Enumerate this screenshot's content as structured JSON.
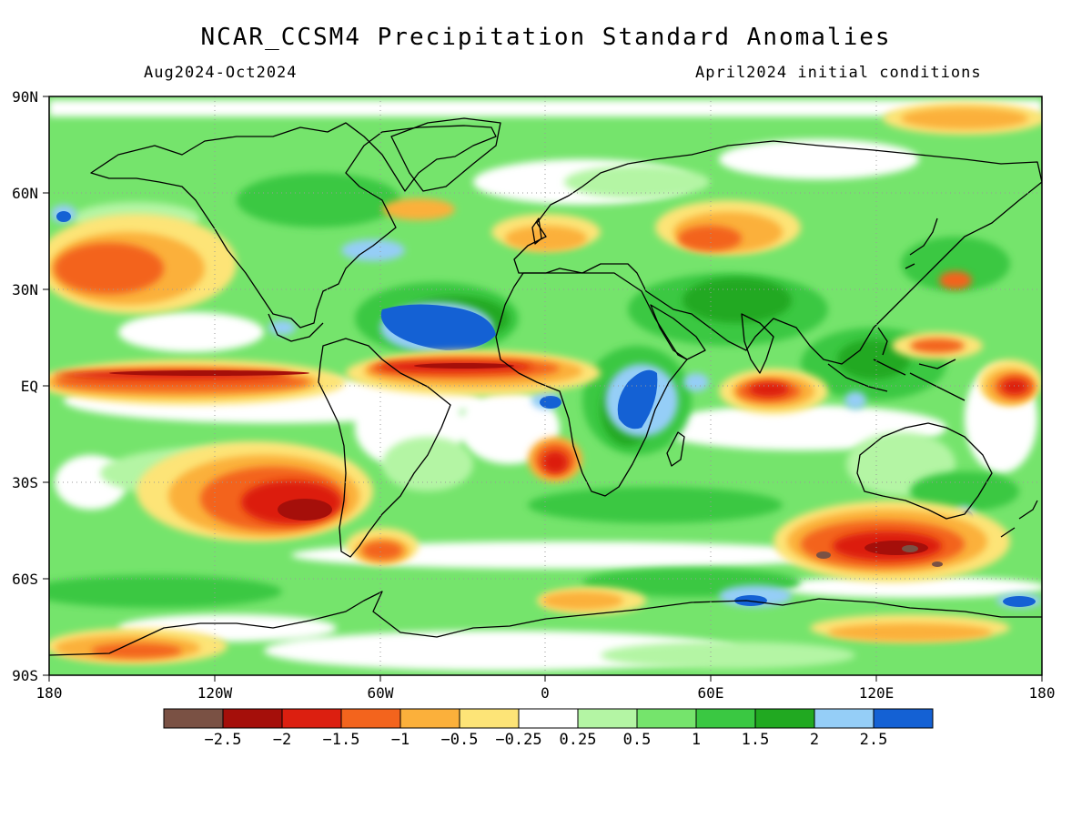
{
  "header": {
    "title": "NCAR_CCSM4 Precipitation Standard Anomalies",
    "period": "Aug2024-Oct2024",
    "init": "April2024 initial conditions"
  },
  "axes": {
    "lat_labels": [
      "90N",
      "60N",
      "30N",
      "EQ",
      "30S",
      "60S",
      "90S"
    ],
    "lon_labels": [
      "180",
      "120W",
      "60W",
      "0",
      "60E",
      "120E",
      "180"
    ]
  },
  "colorbar": {
    "colors": [
      "#7a5144",
      "#a50f0a",
      "#dc1f10",
      "#f3641d",
      "#fbb03b",
      "#fde477",
      "#ffffff",
      "#b4f5a4",
      "#75e46c",
      "#3ac842",
      "#21a921",
      "#95cef7",
      "#1461d4"
    ],
    "labels": [
      "-2.5",
      "-2",
      "-1.5",
      "-1",
      "-0.5",
      "-0.25",
      "0.25",
      "0.5",
      "1",
      "1.5",
      "2",
      "2.5"
    ]
  },
  "colors": {
    "ocean_land_base": "#75e46c",
    "coastline": "#000000"
  }
}
